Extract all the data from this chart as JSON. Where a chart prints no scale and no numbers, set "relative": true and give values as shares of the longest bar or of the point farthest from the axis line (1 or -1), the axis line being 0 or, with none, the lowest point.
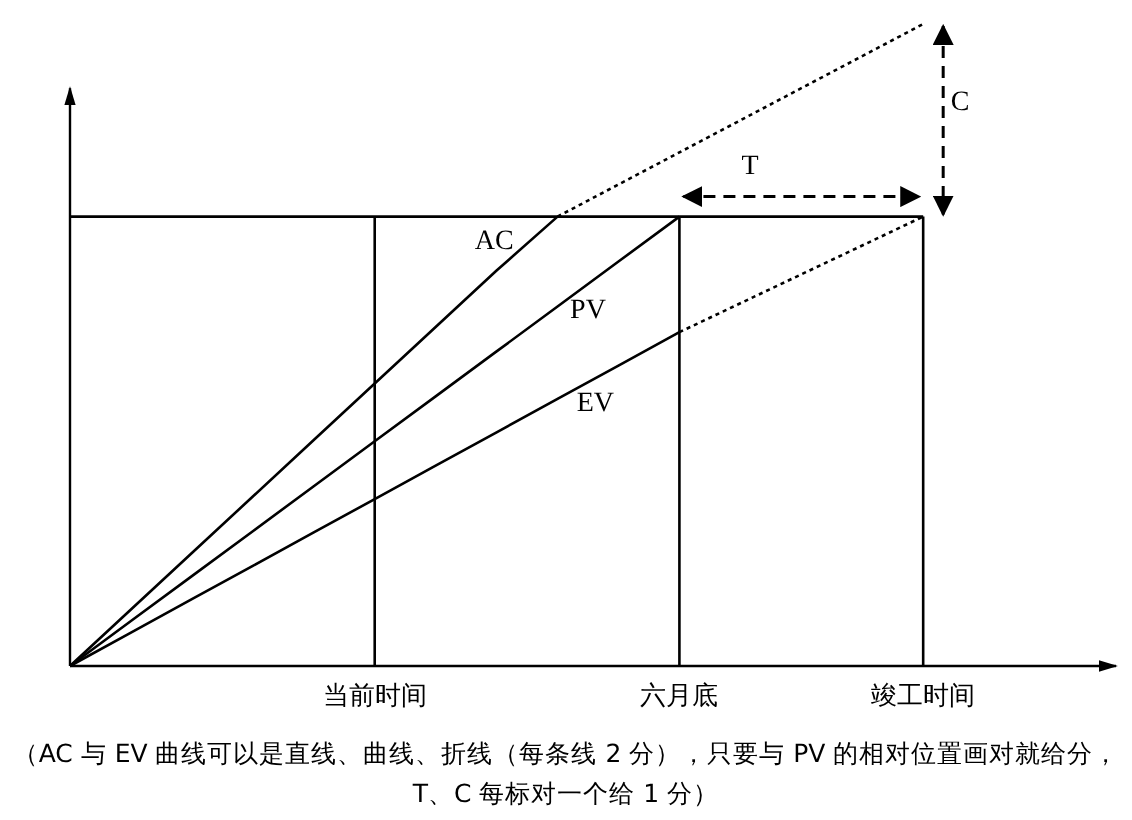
{
  "chart_data": {
    "type": "line",
    "relative": true,
    "categories": [
      null,
      null,
      null,
      null,
      null,
      "当前时间",
      null,
      null,
      null,
      null,
      "六月底",
      null,
      null,
      null,
      "竣工时间",
      null,
      null,
      null
    ],
    "series": [
      {
        "name": "AC",
        "color": "#000000",
        "values": [
          0,
          0.088,
          0.176,
          0.264,
          0.352,
          0.44,
          0.528,
          0.616,
          0.7,
          null,
          null,
          null,
          null,
          null,
          null,
          null,
          null,
          null
        ]
      },
      {
        "color": "#000000",
        "line_style": "dotted",
        "values": [
          null,
          null,
          null,
          null,
          null,
          null,
          null,
          null,
          0.7,
          0.75,
          0.8,
          0.85,
          0.9,
          0.95,
          1,
          null,
          null,
          null
        ]
      },
      {
        "name": "PV",
        "color": "#000000",
        "values": [
          0,
          0.07,
          0.14,
          0.21,
          0.28,
          0.35,
          0.42,
          0.49,
          0.56,
          0.63,
          0.7,
          null,
          null,
          null,
          null,
          null,
          null,
          null
        ]
      },
      {
        "name": "EV",
        "color": "#000000",
        "values": [
          0,
          0.052,
          0.104,
          0.156,
          0.208,
          0.26,
          0.312,
          0.364,
          0.416,
          0.468,
          0.52,
          null,
          null,
          null,
          null,
          null,
          null,
          null
        ]
      },
      {
        "color": "#000000",
        "line_style": "dotted",
        "values": [
          null,
          null,
          null,
          null,
          null,
          null,
          null,
          null,
          null,
          null,
          0.52,
          0.565,
          0.61,
          0.655,
          0.7,
          null,
          null,
          null
        ]
      },
      {
        "color": "#000000",
        "values": [
          0.7,
          0.7,
          0.7,
          0.7,
          0.7,
          0.7,
          0.7,
          0.7,
          0.7,
          0.7,
          0.7,
          0.7,
          0.7,
          0.7,
          0.7,
          null,
          null,
          null
        ]
      }
    ],
    "ref_lines": [
      {
        "axis": "x",
        "value": "当前时间",
        "color": "#000000"
      },
      {
        "axis": "x",
        "value": "六月底",
        "color": "#000000"
      },
      {
        "axis": "x",
        "value": "竣工时间",
        "color": "#000000"
      }
    ],
    "annotations": [
      "T",
      "C",
      "（AC 与 EV 曲线可以是直线、曲线、折线（每条线 2 分），只要与 PV 的相对位置画对就给分，",
      "T、C 每标对一个给 1 分）"
    ]
  }
}
